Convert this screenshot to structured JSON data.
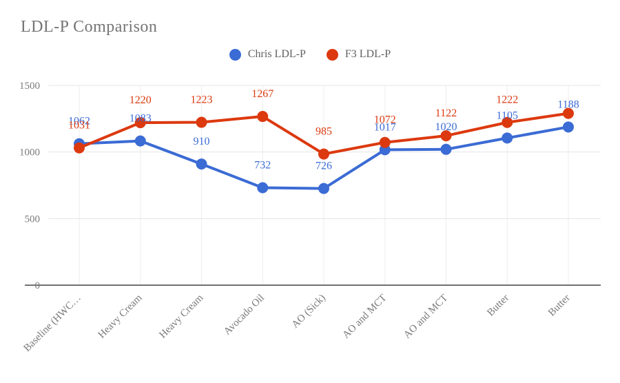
{
  "title": "LDL-P Comparison",
  "legend": {
    "position": "top"
  },
  "chart_data": {
    "type": "line",
    "categories": [
      "Baseline (HWC…",
      "Heavy Cream",
      "Heavy Cream",
      "Avocado Oil",
      "AO (Sick)",
      "AO and MCT",
      "AO and MCT",
      "Butter",
      "Butter"
    ],
    "series": [
      {
        "name": "Chris LDL-P",
        "color": "#3b6bd4",
        "values": [
          1062,
          1083,
          910,
          732,
          726,
          1017,
          1020,
          1105,
          1188
        ],
        "point_labels": [
          "1062",
          "1083",
          "910",
          "732",
          "726",
          "1017",
          "1020",
          "1105",
          "1188"
        ]
      },
      {
        "name": "F3 LDL-P",
        "color": "#dc390f",
        "values": [
          1031,
          1220,
          1223,
          1267,
          985,
          1072,
          1122,
          1222,
          1290
        ],
        "point_labels": [
          "1031",
          "1220",
          "1223",
          "1267",
          "985",
          "1072",
          "1122",
          "1222",
          ""
        ]
      }
    ],
    "xlabel": "",
    "ylabel": "",
    "ylim": [
      0,
      1500
    ],
    "yticks": [
      0,
      500,
      1000,
      1500
    ],
    "grid": true,
    "legend_position": "top",
    "point_labels_visible": true
  },
  "colors": {
    "title_text": "#757575",
    "axis_text": "#7a7a7a",
    "gridline": "#e4e4e4",
    "v_gridline": "#ededed",
    "axis_line": "#424242",
    "background": "#ffffff"
  }
}
